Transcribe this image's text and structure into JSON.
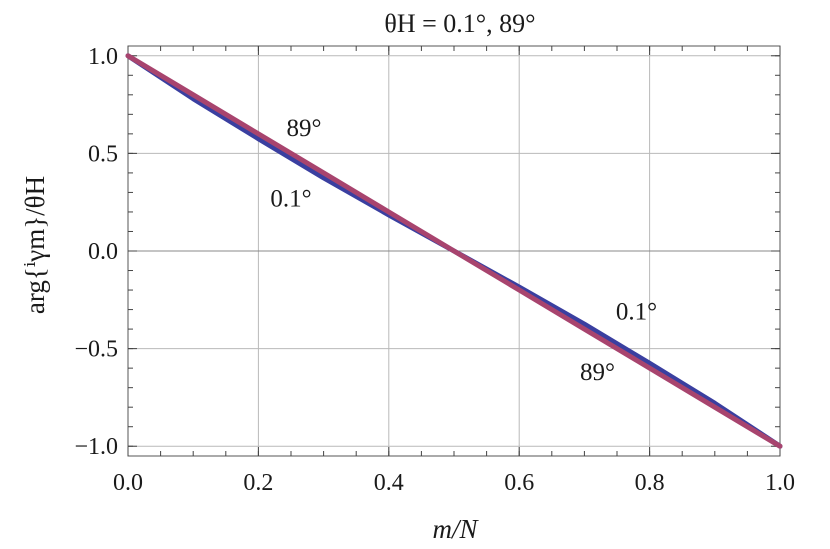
{
  "chart_data": {
    "type": "line",
    "title": "θH = 0.1°, 89°",
    "xlabel": "m/N",
    "ylabel": "arg{ⁱγm}/θH",
    "xlim": [
      0.0,
      1.0
    ],
    "ylim": [
      -1.05,
      1.05
    ],
    "xticks": [
      "0.0",
      "0.2",
      "0.4",
      "0.6",
      "0.8",
      "1.0"
    ],
    "yticks": [
      "1.0",
      "0.5",
      "0.0",
      "−0.5",
      "−1.0"
    ],
    "grid": true,
    "series": [
      {
        "name": "0.1°",
        "color": "#3a3fa0",
        "x": [
          0.0,
          0.1,
          0.2,
          0.3,
          0.4,
          0.5,
          0.6,
          0.7,
          0.8,
          0.9,
          1.0
        ],
        "y": [
          1.0,
          0.78,
          0.575,
          0.375,
          0.185,
          0.0,
          -0.185,
          -0.375,
          -0.575,
          -0.78,
          -1.0
        ]
      },
      {
        "name": "89°",
        "color": "#a8446e",
        "x": [
          0.0,
          0.1,
          0.2,
          0.3,
          0.4,
          0.5,
          0.6,
          0.7,
          0.8,
          0.9,
          1.0
        ],
        "y": [
          1.0,
          0.8,
          0.6,
          0.4,
          0.2,
          0.0,
          -0.2,
          -0.4,
          -0.6,
          -0.8,
          -1.0
        ]
      }
    ],
    "annotations": [
      {
        "text": "89°",
        "x": 0.27,
        "y": 0.63
      },
      {
        "text": "0.1°",
        "x": 0.25,
        "y": 0.27
      },
      {
        "text": "0.1°",
        "x": 0.78,
        "y": -0.31
      },
      {
        "text": "89°",
        "x": 0.72,
        "y": -0.62
      }
    ]
  }
}
